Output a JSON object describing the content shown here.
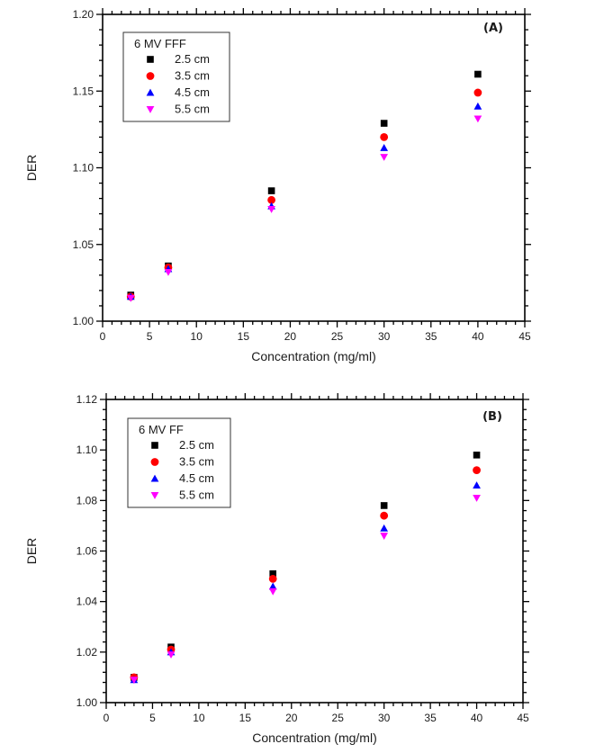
{
  "chart_data": [
    {
      "type": "scatter",
      "panel_label": "(A)",
      "xlabel": "Concentration (mg/ml)",
      "ylabel": "DER",
      "xlim": [
        0,
        45
      ],
      "ylim": [
        1.0,
        1.2
      ],
      "xticks": [
        0,
        5,
        10,
        15,
        20,
        25,
        30,
        35,
        40,
        45
      ],
      "xtick_labels": [
        "0",
        "5",
        "10",
        "15",
        "20",
        "25",
        "30",
        "35",
        "40",
        "45"
      ],
      "yticks": [
        1.0,
        1.05,
        1.1,
        1.15,
        1.2
      ],
      "ytick_labels": [
        "1.00",
        "1.05",
        "1.10",
        "1.15",
        "1.20"
      ],
      "x_minor_step": 1,
      "y_minor_step": 0.01,
      "grid": false,
      "legend": {
        "title": "6 MV FFF",
        "placement": "top-left"
      },
      "x": [
        3,
        7,
        18,
        30,
        40
      ],
      "series": [
        {
          "name": "2.5 cm",
          "marker": "square",
          "color": "#000000",
          "values": [
            1.017,
            1.036,
            1.085,
            1.129,
            1.161
          ]
        },
        {
          "name": "3.5 cm",
          "marker": "circle",
          "color": "#ff0000",
          "values": [
            1.016,
            1.035,
            1.079,
            1.12,
            1.149
          ]
        },
        {
          "name": "4.5 cm",
          "marker": "triangle-up",
          "color": "#0000ff",
          "values": [
            1.016,
            1.034,
            1.075,
            1.113,
            1.14
          ]
        },
        {
          "name": "5.5 cm",
          "marker": "triangle-down",
          "color": "#ff00ff",
          "values": [
            1.015,
            1.032,
            1.073,
            1.107,
            1.132
          ]
        }
      ]
    },
    {
      "type": "scatter",
      "panel_label": "(B)",
      "xlabel": "Concentration (mg/ml)",
      "ylabel": "DER",
      "xlim": [
        0,
        45
      ],
      "ylim": [
        1.0,
        1.12
      ],
      "xticks": [
        0,
        5,
        10,
        15,
        20,
        25,
        30,
        35,
        40,
        45
      ],
      "xtick_labels": [
        "0",
        "5",
        "10",
        "15",
        "20",
        "25",
        "30",
        "35",
        "40",
        "45"
      ],
      "yticks": [
        1.0,
        1.02,
        1.04,
        1.06,
        1.08,
        1.1,
        1.12
      ],
      "ytick_labels": [
        "1.00",
        "1.02",
        "1.04",
        "1.06",
        "1.08",
        "1.10",
        "1.12"
      ],
      "x_minor_step": 1,
      "y_minor_step": 0.004,
      "grid": false,
      "legend": {
        "title": "6 MV FF",
        "placement": "top-left"
      },
      "x": [
        3,
        7,
        18,
        30,
        40
      ],
      "series": [
        {
          "name": "2.5 cm",
          "marker": "square",
          "color": "#000000",
          "values": [
            1.01,
            1.022,
            1.051,
            1.078,
            1.098
          ]
        },
        {
          "name": "3.5 cm",
          "marker": "circle",
          "color": "#ff0000",
          "values": [
            1.01,
            1.021,
            1.049,
            1.074,
            1.092
          ]
        },
        {
          "name": "4.5 cm",
          "marker": "triangle-up",
          "color": "#0000ff",
          "values": [
            1.009,
            1.02,
            1.046,
            1.069,
            1.086
          ]
        },
        {
          "name": "5.5 cm",
          "marker": "triangle-down",
          "color": "#ff00ff",
          "values": [
            1.009,
            1.019,
            1.044,
            1.066,
            1.081
          ]
        }
      ]
    }
  ]
}
